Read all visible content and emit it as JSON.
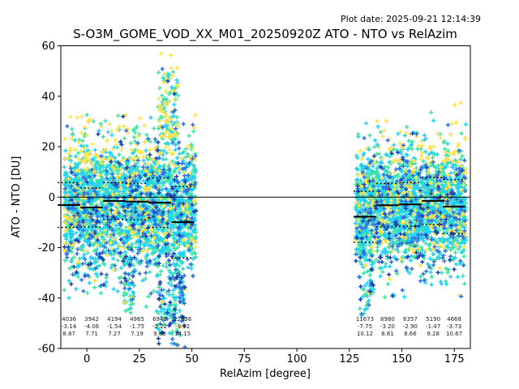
{
  "chart_data": {
    "type": "scatter",
    "title": "S-O3M_GOME_VOD_XX_M01_20250920Z ATO - NTO vs RelAzim",
    "plot_date_label": "Plot date: 2025-09-21 12:14:39",
    "xlabel": "RelAzim [degree]",
    "ylabel": "ATO - NTO [DU]",
    "xlim": [
      -12.4,
      182.6
    ],
    "ylim": [
      -60,
      60
    ],
    "xticks": [
      0,
      25,
      50,
      75,
      100,
      125,
      150,
      175
    ],
    "yticks": [
      -60,
      -40,
      -20,
      0,
      20,
      40,
      60
    ],
    "zero_line_y": 0,
    "grid": false,
    "legend": "none",
    "marker": "plus",
    "palette": {
      "green": "#3ee3a0",
      "cyan": "#1fd0ff",
      "yellow": "#ffe14a",
      "blue": "#2f6fde",
      "dark_blue": "#1a3fb0"
    },
    "clusters": [
      {
        "name": "left-main",
        "x_min": -10.8,
        "x_max": 52.0,
        "count": 3000,
        "y_mean": -3.5,
        "y_std": 13,
        "y_clip": [
          -50.0,
          33.0
        ]
      },
      {
        "name": "left-top-spike",
        "x_min": 34.0,
        "x_max": 43.5,
        "count": 120,
        "y_mean": 36.0,
        "y_std": 10,
        "y_clip": [
          24.0,
          57.5
        ]
      },
      {
        "name": "left-bottom-spike",
        "x_min": 33.0,
        "x_max": 47.0,
        "count": 150,
        "y_mean": -41.0,
        "y_std": 9,
        "y_clip": [
          -59.5,
          -25.0
        ]
      },
      {
        "name": "left-bottom-small",
        "x_min": 17.5,
        "x_max": 22.5,
        "count": 45,
        "y_mean": -35.0,
        "y_std": 6,
        "y_clip": [
          -46.0,
          -24.0
        ]
      },
      {
        "name": "right-main",
        "x_min": 128.0,
        "x_max": 180.5,
        "count": 2500,
        "y_mean": -4.0,
        "y_std": 12,
        "y_clip": [
          -40.0,
          38.0
        ]
      },
      {
        "name": "right-bottom-spike",
        "x_min": 129.5,
        "x_max": 136.5,
        "count": 60,
        "y_mean": -33.0,
        "y_std": 8,
        "y_clip": [
          -47.0,
          -18.0
        ]
      }
    ],
    "bins": [
      {
        "n": "4036",
        "bias": "-3.14",
        "std": "8.87",
        "x_center": -8.5
      },
      {
        "n": "3942",
        "bias": "-4.08",
        "std": "7.71",
        "x_center": 2.3
      },
      {
        "n": "4194",
        "bias": "-1.54",
        "std": "7.27",
        "x_center": 13.1
      },
      {
        "n": "4965",
        "bias": "-1.75",
        "std": "7.19",
        "x_center": 23.9
      },
      {
        "n": "6948",
        "bias": "-2.22",
        "std": "9.80",
        "x_center": 34.7
      },
      {
        "n": "22636",
        "bias": "-9.92",
        "std": "14.15",
        "x_center": 45.6
      },
      {
        "n": "11673",
        "bias": "-7.75",
        "std": "10.12",
        "x_center": 132.4
      },
      {
        "n": "8980",
        "bias": "-3.20",
        "std": "8.61",
        "x_center": 143.2
      },
      {
        "n": "6357",
        "bias": "-2.90",
        "std": "8.66",
        "x_center": 154.0
      },
      {
        "n": "5190",
        "bias": "-1.47",
        "std": "9.28",
        "x_center": 164.9
      },
      {
        "n": "4668",
        "bias": "-3.73",
        "std": "10.67",
        "x_center": 174.9
      }
    ]
  }
}
